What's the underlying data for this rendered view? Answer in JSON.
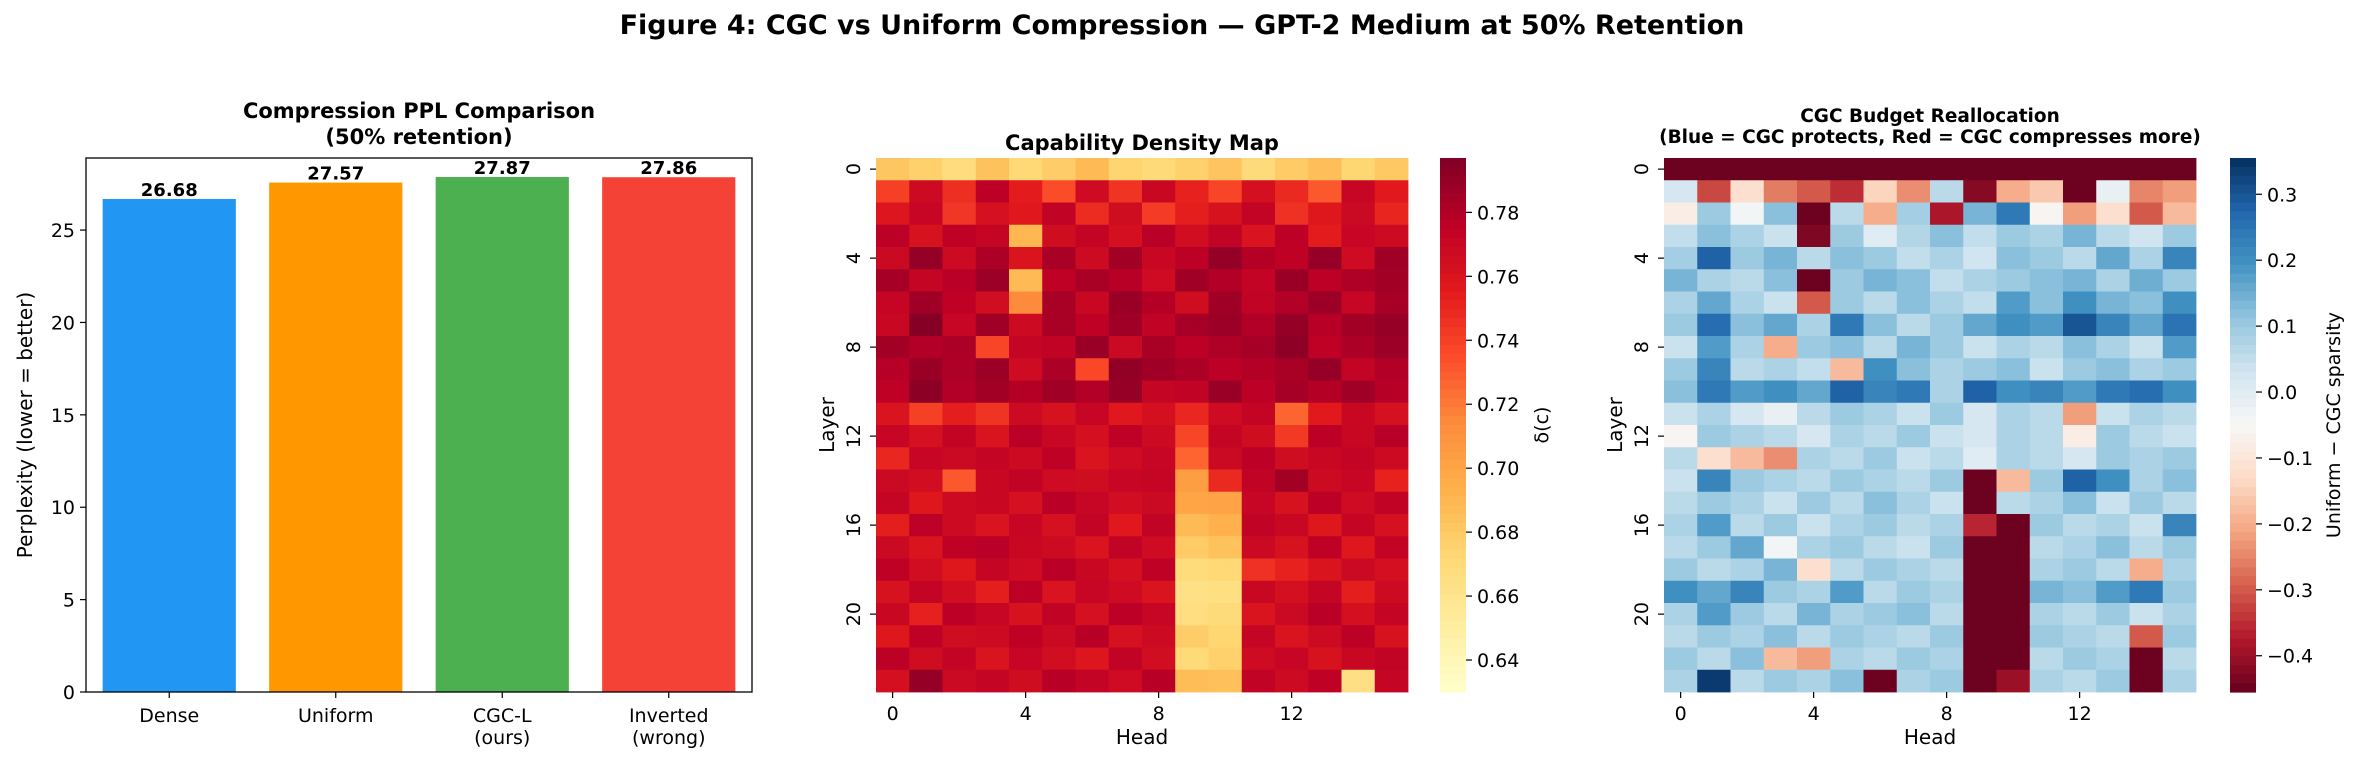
{
  "figure_title": "Figure 4: CGC vs Uniform Compression — GPT-2 Medium at 50% Retention",
  "chart_data": [
    {
      "type": "bar",
      "title_lines": [
        "Compression PPL Comparison",
        "(50% retention)"
      ],
      "xlabel": "",
      "ylabel": "Perplexity (lower = better)",
      "ylim": [
        0,
        28.9
      ],
      "yticks": [
        0,
        5,
        10,
        15,
        20,
        25
      ],
      "categories": [
        [
          "Dense"
        ],
        [
          "Uniform"
        ],
        [
          "CGC-L",
          "(ours)"
        ],
        [
          "Inverted",
          "(wrong)"
        ]
      ],
      "values": [
        26.68,
        27.57,
        27.87,
        27.86
      ],
      "value_labels": [
        "26.68",
        "27.57",
        "27.87",
        "27.86"
      ],
      "colors": [
        "#2196F3",
        "#FF9800",
        "#4CAF50",
        "#F44336"
      ],
      "grid": false
    },
    {
      "type": "heatmap",
      "title_lines": [
        "Capability Density Map"
      ],
      "xlabel": "Head",
      "ylabel": "Layer",
      "xticks": [
        0,
        4,
        8,
        12
      ],
      "yticks": [
        0,
        4,
        8,
        12,
        16,
        20
      ],
      "colormap": "YlOrRd",
      "vmin": 0.63,
      "vmax": 0.797,
      "colorbar_label": "δ(c)",
      "colorbar_ticks": [
        "0.64",
        "0.66",
        "0.68",
        "0.70",
        "0.72",
        "0.74",
        "0.76",
        "0.78"
      ],
      "matrix": [
        [
          0.682,
          0.676,
          0.668,
          0.684,
          0.672,
          0.678,
          0.688,
          0.674,
          0.671,
          0.676,
          0.683,
          0.67,
          0.679,
          0.686,
          0.673,
          0.681
        ],
        [
          0.74,
          0.768,
          0.747,
          0.776,
          0.755,
          0.735,
          0.767,
          0.745,
          0.77,
          0.752,
          0.738,
          0.764,
          0.749,
          0.731,
          0.771,
          0.756
        ],
        [
          0.759,
          0.771,
          0.744,
          0.763,
          0.757,
          0.774,
          0.748,
          0.766,
          0.742,
          0.754,
          0.762,
          0.773,
          0.746,
          0.758,
          0.769,
          0.751
        ],
        [
          0.776,
          0.762,
          0.775,
          0.772,
          0.69,
          0.766,
          0.773,
          0.764,
          0.777,
          0.765,
          0.774,
          0.761,
          0.776,
          0.755,
          0.771,
          0.768
        ],
        [
          0.769,
          0.79,
          0.768,
          0.782,
          0.76,
          0.783,
          0.768,
          0.785,
          0.77,
          0.776,
          0.79,
          0.779,
          0.775,
          0.789,
          0.767,
          0.786
        ],
        [
          0.784,
          0.772,
          0.777,
          0.787,
          0.688,
          0.775,
          0.783,
          0.778,
          0.767,
          0.786,
          0.78,
          0.773,
          0.788,
          0.776,
          0.781,
          0.785
        ],
        [
          0.772,
          0.786,
          0.775,
          0.765,
          0.714,
          0.783,
          0.77,
          0.788,
          0.779,
          0.766,
          0.786,
          0.774,
          0.78,
          0.787,
          0.771,
          0.784
        ],
        [
          0.77,
          0.795,
          0.771,
          0.786,
          0.768,
          0.783,
          0.775,
          0.786,
          0.774,
          0.784,
          0.787,
          0.78,
          0.79,
          0.778,
          0.785,
          0.789
        ],
        [
          0.785,
          0.78,
          0.782,
          0.738,
          0.772,
          0.774,
          0.788,
          0.769,
          0.783,
          0.776,
          0.781,
          0.784,
          0.792,
          0.775,
          0.782,
          0.787
        ],
        [
          0.778,
          0.788,
          0.781,
          0.787,
          0.767,
          0.782,
          0.737,
          0.791,
          0.786,
          0.782,
          0.776,
          0.779,
          0.783,
          0.789,
          0.773,
          0.78
        ],
        [
          0.775,
          0.793,
          0.78,
          0.785,
          0.779,
          0.786,
          0.78,
          0.789,
          0.772,
          0.774,
          0.788,
          0.776,
          0.784,
          0.779,
          0.786,
          0.778
        ],
        [
          0.76,
          0.74,
          0.754,
          0.745,
          0.768,
          0.762,
          0.771,
          0.757,
          0.764,
          0.75,
          0.767,
          0.773,
          0.727,
          0.756,
          0.77,
          0.763
        ],
        [
          0.771,
          0.763,
          0.773,
          0.76,
          0.777,
          0.77,
          0.764,
          0.775,
          0.768,
          0.738,
          0.772,
          0.766,
          0.743,
          0.776,
          0.77,
          0.778
        ],
        [
          0.75,
          0.771,
          0.769,
          0.772,
          0.768,
          0.775,
          0.76,
          0.767,
          0.771,
          0.727,
          0.769,
          0.776,
          0.766,
          0.77,
          0.773,
          0.768
        ],
        [
          0.769,
          0.765,
          0.731,
          0.77,
          0.774,
          0.767,
          0.766,
          0.771,
          0.772,
          0.704,
          0.749,
          0.774,
          0.785,
          0.768,
          0.771,
          0.752
        ],
        [
          0.772,
          0.758,
          0.768,
          0.77,
          0.763,
          0.777,
          0.771,
          0.765,
          0.769,
          0.7,
          0.701,
          0.771,
          0.762,
          0.776,
          0.767,
          0.774
        ],
        [
          0.754,
          0.776,
          0.768,
          0.761,
          0.771,
          0.763,
          0.773,
          0.757,
          0.774,
          0.688,
          0.693,
          0.774,
          0.77,
          0.758,
          0.772,
          0.763
        ],
        [
          0.769,
          0.76,
          0.775,
          0.777,
          0.77,
          0.768,
          0.76,
          0.774,
          0.767,
          0.679,
          0.684,
          0.769,
          0.762,
          0.775,
          0.758,
          0.773
        ],
        [
          0.775,
          0.765,
          0.758,
          0.772,
          0.767,
          0.777,
          0.77,
          0.764,
          0.775,
          0.669,
          0.672,
          0.746,
          0.752,
          0.76,
          0.769,
          0.764
        ],
        [
          0.762,
          0.773,
          0.765,
          0.754,
          0.776,
          0.761,
          0.771,
          0.767,
          0.76,
          0.664,
          0.666,
          0.77,
          0.764,
          0.772,
          0.754,
          0.768
        ],
        [
          0.77,
          0.753,
          0.776,
          0.771,
          0.762,
          0.774,
          0.763,
          0.776,
          0.771,
          0.667,
          0.67,
          0.76,
          0.769,
          0.777,
          0.764,
          0.772
        ],
        [
          0.758,
          0.775,
          0.766,
          0.768,
          0.775,
          0.769,
          0.778,
          0.763,
          0.768,
          0.678,
          0.673,
          0.772,
          0.76,
          0.768,
          0.776,
          0.762
        ],
        [
          0.776,
          0.766,
          0.773,
          0.76,
          0.771,
          0.765,
          0.759,
          0.774,
          0.765,
          0.671,
          0.676,
          0.767,
          0.771,
          0.762,
          0.77,
          0.774
        ],
        [
          0.764,
          0.79,
          0.769,
          0.772,
          0.766,
          0.778,
          0.773,
          0.767,
          0.778,
          0.687,
          0.685,
          0.774,
          0.768,
          0.775,
          0.665,
          0.772
        ]
      ]
    },
    {
      "type": "heatmap",
      "title_lines": [
        "CGC Budget Reallocation",
        "(Blue = CGC protects, Red = CGC compresses more)"
      ],
      "xlabel": "Head",
      "ylabel": "Layer",
      "xticks": [
        0,
        4,
        8,
        12
      ],
      "yticks": [
        0,
        4,
        8,
        12,
        16,
        20
      ],
      "colormap": "RdBu",
      "vmin": -0.455,
      "vmax": 0.355,
      "colorbar_label": "Uniform − CGC sparsity",
      "colorbar_ticks": [
        "−0.4",
        "−0.3",
        "−0.2",
        "−0.1",
        "0.0",
        "0.1",
        "0.2",
        "0.3"
      ],
      "matrix": [
        [
          -0.45,
          -0.45,
          -0.45,
          -0.45,
          -0.45,
          -0.45,
          -0.45,
          -0.45,
          -0.45,
          -0.45,
          -0.45,
          -0.45,
          -0.45,
          -0.45,
          -0.45,
          -0.45
        ],
        [
          0.02,
          -0.32,
          -0.12,
          -0.26,
          -0.3,
          -0.35,
          -0.14,
          -0.24,
          0.06,
          -0.42,
          -0.2,
          -0.16,
          -0.45,
          -0.02,
          -0.25,
          -0.22
        ],
        [
          -0.08,
          0.1,
          -0.04,
          0.12,
          -0.45,
          0.06,
          -0.2,
          0.09,
          -0.38,
          0.14,
          0.24,
          -0.06,
          -0.22,
          -0.12,
          -0.3,
          -0.18
        ],
        [
          0.05,
          0.12,
          0.08,
          0.04,
          -0.43,
          0.1,
          0.0,
          0.07,
          0.12,
          0.05,
          0.1,
          0.08,
          0.14,
          0.06,
          0.03,
          0.1
        ],
        [
          0.09,
          0.28,
          0.1,
          0.14,
          0.06,
          0.12,
          0.1,
          0.05,
          0.08,
          0.03,
          0.12,
          0.1,
          0.06,
          0.16,
          0.08,
          0.22
        ],
        [
          0.14,
          0.08,
          0.06,
          0.12,
          -0.45,
          0.1,
          0.14,
          0.12,
          0.05,
          0.08,
          0.1,
          0.12,
          0.14,
          0.08,
          0.15,
          0.1
        ],
        [
          0.08,
          0.16,
          0.08,
          0.04,
          -0.3,
          0.1,
          0.06,
          0.12,
          0.08,
          0.05,
          0.18,
          0.12,
          0.2,
          0.14,
          0.12,
          0.2
        ],
        [
          0.1,
          0.26,
          0.12,
          0.16,
          0.08,
          0.24,
          0.12,
          0.06,
          0.1,
          0.16,
          0.2,
          0.18,
          0.3,
          0.22,
          0.16,
          0.25
        ],
        [
          0.04,
          0.18,
          0.08,
          -0.2,
          0.1,
          0.12,
          0.06,
          0.14,
          0.1,
          0.04,
          0.08,
          0.06,
          0.12,
          0.08,
          0.04,
          0.18
        ],
        [
          0.1,
          0.22,
          0.06,
          0.08,
          0.05,
          -0.18,
          0.2,
          0.12,
          0.08,
          0.1,
          0.12,
          0.04,
          0.1,
          0.12,
          0.08,
          0.1
        ],
        [
          0.12,
          0.24,
          0.18,
          0.2,
          0.16,
          0.28,
          0.22,
          0.24,
          0.08,
          0.28,
          0.2,
          0.22,
          0.18,
          0.24,
          0.26,
          0.2
        ],
        [
          0.04,
          0.08,
          0.02,
          -0.02,
          0.06,
          0.1,
          0.08,
          0.04,
          0.1,
          0.02,
          0.08,
          0.06,
          -0.22,
          0.04,
          0.08,
          0.06
        ],
        [
          -0.06,
          0.1,
          0.08,
          0.06,
          0.02,
          0.08,
          0.06,
          0.1,
          0.04,
          0.02,
          0.08,
          0.06,
          -0.08,
          0.1,
          0.06,
          0.04
        ],
        [
          0.06,
          -0.12,
          -0.18,
          -0.24,
          0.08,
          0.06,
          0.1,
          0.04,
          0.06,
          0.0,
          0.08,
          0.06,
          0.02,
          0.1,
          0.08,
          0.1
        ],
        [
          0.04,
          0.22,
          0.1,
          0.08,
          0.06,
          0.1,
          0.08,
          0.06,
          0.1,
          -0.45,
          -0.18,
          0.1,
          0.28,
          0.2,
          0.08,
          0.12
        ],
        [
          0.06,
          0.1,
          0.08,
          0.04,
          0.1,
          0.06,
          0.12,
          0.08,
          0.04,
          -0.45,
          0.06,
          0.08,
          0.12,
          0.04,
          0.1,
          0.06
        ],
        [
          0.08,
          0.18,
          0.06,
          0.1,
          0.04,
          0.08,
          0.1,
          0.06,
          0.08,
          -0.36,
          -0.45,
          0.1,
          0.06,
          0.08,
          0.04,
          0.22
        ],
        [
          0.06,
          0.1,
          0.16,
          -0.04,
          0.08,
          0.1,
          0.06,
          0.04,
          0.1,
          -0.45,
          -0.45,
          0.06,
          0.08,
          0.12,
          0.06,
          0.1
        ],
        [
          0.1,
          0.06,
          0.08,
          0.14,
          -0.12,
          0.06,
          0.1,
          0.08,
          0.06,
          -0.45,
          -0.45,
          0.08,
          0.1,
          0.06,
          -0.2,
          0.08
        ],
        [
          0.2,
          0.16,
          0.22,
          0.1,
          0.08,
          0.18,
          0.06,
          0.1,
          0.08,
          -0.45,
          -0.45,
          0.14,
          0.12,
          0.18,
          0.24,
          0.1
        ],
        [
          0.08,
          0.18,
          0.1,
          0.06,
          0.14,
          0.08,
          0.1,
          0.12,
          0.06,
          -0.45,
          -0.45,
          0.08,
          0.06,
          0.1,
          0.04,
          0.08
        ],
        [
          0.06,
          0.1,
          0.08,
          0.12,
          0.06,
          0.1,
          0.08,
          0.06,
          0.1,
          -0.45,
          -0.45,
          0.1,
          0.08,
          0.06,
          -0.3,
          0.1
        ],
        [
          0.1,
          0.06,
          0.12,
          -0.18,
          -0.22,
          0.08,
          0.06,
          0.1,
          0.08,
          -0.45,
          -0.45,
          0.06,
          0.1,
          0.08,
          -0.45,
          0.06
        ],
        [
          0.08,
          0.34,
          0.06,
          0.1,
          0.08,
          0.12,
          -0.45,
          0.08,
          0.1,
          -0.45,
          -0.4,
          0.08,
          0.06,
          0.1,
          -0.45,
          0.08
        ]
      ]
    }
  ]
}
